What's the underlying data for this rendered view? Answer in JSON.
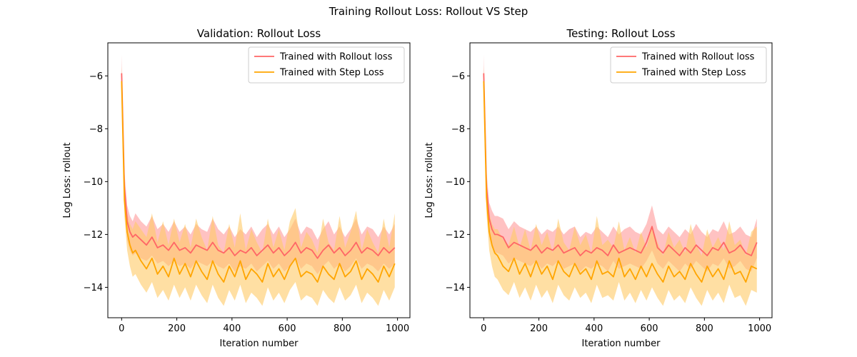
{
  "figure": {
    "suptitle": "Training Rollout Loss: Rollout VS Step"
  },
  "chart_data": [
    {
      "type": "line",
      "title": "Validation: Rollout Loss",
      "xlabel": "Iteration number",
      "ylabel": "Log Loss: rollout",
      "xlim": [
        -50,
        1045
      ],
      "ylim": [
        -15.15,
        -4.75
      ],
      "xticks": [
        0,
        200,
        400,
        600,
        800,
        1000
      ],
      "yticks": [
        -14,
        -12,
        -10,
        -8,
        -6
      ],
      "ytick_labels": [
        "−14",
        "−12",
        "−10",
        "−8",
        "−6"
      ],
      "grid": false,
      "legend": "top-right",
      "series": [
        {
          "name": "Trained with Rollout loss",
          "color": "#ff6666",
          "band_color": "#ff9999",
          "x": [
            0,
            10,
            20,
            30,
            40,
            50,
            70,
            90,
            110,
            130,
            150,
            170,
            190,
            210,
            230,
            250,
            270,
            290,
            310,
            330,
            350,
            370,
            390,
            410,
            430,
            450,
            470,
            490,
            510,
            530,
            550,
            570,
            590,
            610,
            630,
            650,
            670,
            690,
            710,
            730,
            750,
            770,
            790,
            810,
            830,
            850,
            870,
            890,
            910,
            930,
            950,
            970,
            990
          ],
          "values": [
            -5.9,
            -10.2,
            -11.5,
            -11.9,
            -12.1,
            -12.0,
            -12.2,
            -12.4,
            -12.1,
            -12.5,
            -12.4,
            -12.6,
            -12.3,
            -12.6,
            -12.5,
            -12.7,
            -12.4,
            -12.5,
            -12.6,
            -12.3,
            -12.6,
            -12.7,
            -12.5,
            -12.8,
            -12.6,
            -12.7,
            -12.5,
            -12.8,
            -12.6,
            -12.4,
            -12.7,
            -12.5,
            -12.8,
            -12.6,
            -12.3,
            -12.7,
            -12.5,
            -12.6,
            -12.9,
            -12.6,
            -12.4,
            -12.7,
            -12.5,
            -12.8,
            -12.6,
            -12.3,
            -12.7,
            -12.5,
            -12.6,
            -12.8,
            -12.5,
            -12.7,
            -12.5
          ],
          "band": {
            "lower": [
              -6.6,
              -10.8,
              -12.2,
              -12.6,
              -12.8,
              -12.7,
              -12.9,
              -13.0,
              -12.8,
              -13.1,
              -13.0,
              -13.2,
              -13.0,
              -13.2,
              -13.1,
              -13.3,
              -13.0,
              -13.1,
              -13.2,
              -13.0,
              -13.2,
              -13.3,
              -13.1,
              -13.4,
              -13.2,
              -13.3,
              -13.1,
              -13.4,
              -13.2,
              -13.0,
              -13.3,
              -13.1,
              -13.4,
              -13.2,
              -12.9,
              -13.3,
              -13.1,
              -13.2,
              -13.5,
              -13.2,
              -13.0,
              -13.3,
              -13.1,
              -13.4,
              -13.2,
              -12.9,
              -13.3,
              -13.1,
              -13.2,
              -13.4,
              -13.1,
              -13.3,
              -13.1
            ],
            "upper": [
              -5.2,
              -9.6,
              -10.9,
              -11.3,
              -11.5,
              -11.2,
              -11.5,
              -11.7,
              -11.3,
              -11.8,
              -11.6,
              -11.9,
              -11.5,
              -11.9,
              -11.7,
              -12.0,
              -11.6,
              -11.8,
              -11.9,
              -11.4,
              -11.8,
              -12.0,
              -11.7,
              -12.1,
              -11.8,
              -12.0,
              -11.7,
              -12.1,
              -11.8,
              -11.6,
              -12.0,
              -11.7,
              -12.1,
              -11.8,
              -11.4,
              -12.0,
              -11.7,
              -11.8,
              -12.2,
              -11.8,
              -11.5,
              -12.0,
              -11.7,
              -12.1,
              -11.8,
              -11.4,
              -12.0,
              -11.7,
              -11.8,
              -12.1,
              -11.7,
              -12.0,
              -11.6
            ]
          }
        },
        {
          "name": "Trained with Step Loss",
          "color": "#ffa500",
          "band_color": "#ffc966",
          "x": [
            0,
            10,
            20,
            30,
            40,
            50,
            70,
            90,
            110,
            130,
            150,
            170,
            190,
            210,
            230,
            250,
            270,
            290,
            310,
            330,
            350,
            370,
            390,
            410,
            430,
            450,
            470,
            490,
            510,
            530,
            550,
            570,
            590,
            610,
            630,
            650,
            670,
            690,
            710,
            730,
            750,
            770,
            790,
            810,
            830,
            850,
            870,
            890,
            910,
            930,
            950,
            970,
            990
          ],
          "values": [
            -6.2,
            -10.7,
            -11.9,
            -12.4,
            -12.7,
            -12.6,
            -13.0,
            -13.3,
            -12.9,
            -13.5,
            -13.2,
            -13.6,
            -12.9,
            -13.5,
            -13.1,
            -13.6,
            -13.0,
            -13.4,
            -13.7,
            -13.0,
            -13.5,
            -13.8,
            -13.2,
            -13.6,
            -13.0,
            -13.7,
            -13.3,
            -13.5,
            -13.8,
            -13.1,
            -13.6,
            -13.3,
            -13.7,
            -13.2,
            -12.9,
            -13.6,
            -13.4,
            -13.5,
            -13.8,
            -13.2,
            -13.5,
            -13.7,
            -13.1,
            -13.6,
            -13.4,
            -13.0,
            -13.7,
            -13.3,
            -13.5,
            -13.8,
            -13.2,
            -13.6,
            -13.1
          ],
          "band": {
            "lower": [
              -6.8,
              -11.3,
              -12.6,
              -13.2,
              -13.6,
              -13.5,
              -13.9,
              -14.2,
              -13.8,
              -14.4,
              -14.1,
              -14.5,
              -13.9,
              -14.4,
              -14.0,
              -14.5,
              -13.9,
              -14.3,
              -14.6,
              -13.9,
              -14.4,
              -14.7,
              -14.1,
              -14.5,
              -13.9,
              -14.6,
              -14.2,
              -14.4,
              -14.7,
              -14.0,
              -14.5,
              -14.2,
              -14.6,
              -14.1,
              -13.8,
              -14.5,
              -14.3,
              -14.4,
              -14.7,
              -14.1,
              -14.4,
              -14.6,
              -14.0,
              -14.5,
              -14.3,
              -13.9,
              -14.6,
              -14.2,
              -14.4,
              -14.7,
              -14.1,
              -14.5,
              -14.0
            ],
            "upper": [
              -5.6,
              -10.1,
              -11.2,
              -11.6,
              -11.8,
              -11.5,
              -11.8,
              -12.1,
              -11.2,
              -12.3,
              -11.5,
              -12.4,
              -11.4,
              -12.3,
              -11.6,
              -12.5,
              -11.4,
              -12.1,
              -12.6,
              -11.3,
              -12.4,
              -12.7,
              -11.6,
              -12.5,
              -11.2,
              -12.6,
              -11.8,
              -12.3,
              -12.7,
              -11.4,
              -12.5,
              -11.8,
              -12.6,
              -11.5,
              -11.0,
              -12.5,
              -11.9,
              -12.2,
              -12.7,
              -11.4,
              -12.3,
              -12.6,
              -11.3,
              -12.5,
              -11.9,
              -11.1,
              -12.6,
              -11.8,
              -12.3,
              -12.7,
              -11.4,
              -12.5,
              -11.2
            ]
          }
        }
      ]
    },
    {
      "type": "line",
      "title": "Testing: Rollout Loss",
      "xlabel": "Iteration number",
      "ylabel": "Log Loss: rollout",
      "xlim": [
        -50,
        1045
      ],
      "ylim": [
        -15.15,
        -4.75
      ],
      "xticks": [
        0,
        200,
        400,
        600,
        800,
        1000
      ],
      "yticks": [
        -14,
        -12,
        -10,
        -8,
        -6
      ],
      "ytick_labels": [
        "−14",
        "−12",
        "−10",
        "−8",
        "−6"
      ],
      "grid": false,
      "legend": "top-right",
      "series": [
        {
          "name": "Trained with Rollout loss",
          "color": "#ff6666",
          "band_color": "#ff9999",
          "x": [
            0,
            10,
            20,
            30,
            40,
            50,
            70,
            90,
            110,
            130,
            150,
            170,
            190,
            210,
            230,
            250,
            270,
            290,
            310,
            330,
            350,
            370,
            390,
            410,
            430,
            450,
            470,
            490,
            510,
            530,
            550,
            570,
            590,
            610,
            630,
            650,
            670,
            690,
            710,
            730,
            750,
            770,
            790,
            810,
            830,
            850,
            870,
            890,
            910,
            930,
            950,
            970,
            990
          ],
          "values": [
            -5.9,
            -10.2,
            -11.4,
            -11.8,
            -12.0,
            -12.0,
            -12.1,
            -12.5,
            -12.3,
            -12.4,
            -12.5,
            -12.6,
            -12.4,
            -12.7,
            -12.5,
            -12.6,
            -12.4,
            -12.7,
            -12.6,
            -12.5,
            -12.8,
            -12.6,
            -12.7,
            -12.5,
            -12.6,
            -12.8,
            -12.4,
            -12.7,
            -12.6,
            -12.5,
            -12.6,
            -12.7,
            -12.3,
            -11.7,
            -12.5,
            -12.7,
            -12.4,
            -12.6,
            -12.8,
            -12.5,
            -12.7,
            -12.4,
            -12.6,
            -12.8,
            -12.5,
            -12.6,
            -12.3,
            -12.7,
            -12.6,
            -12.4,
            -12.7,
            -12.8,
            -12.3
          ],
          "band": {
            "lower": [
              -6.6,
              -10.8,
              -12.1,
              -12.5,
              -12.7,
              -12.7,
              -12.8,
              -13.1,
              -12.9,
              -13.0,
              -13.1,
              -13.2,
              -13.0,
              -13.3,
              -13.1,
              -13.2,
              -13.0,
              -13.3,
              -13.2,
              -13.1,
              -13.4,
              -13.2,
              -13.3,
              -13.1,
              -13.2,
              -13.4,
              -13.0,
              -13.3,
              -13.2,
              -13.1,
              -13.2,
              -13.3,
              -13.0,
              -12.6,
              -13.1,
              -13.3,
              -13.0,
              -13.2,
              -13.4,
              -13.1,
              -13.3,
              -13.0,
              -13.2,
              -13.4,
              -13.1,
              -13.2,
              -12.9,
              -13.3,
              -13.2,
              -13.0,
              -13.3,
              -13.4,
              -12.9
            ],
            "upper": [
              -5.2,
              -9.6,
              -10.8,
              -11.1,
              -11.3,
              -11.3,
              -11.4,
              -11.8,
              -11.5,
              -11.7,
              -11.8,
              -11.9,
              -11.7,
              -12.0,
              -11.8,
              -11.9,
              -11.7,
              -12.0,
              -11.8,
              -11.7,
              -12.1,
              -11.9,
              -12.0,
              -11.7,
              -11.9,
              -12.1,
              -11.7,
              -12.0,
              -11.8,
              -11.7,
              -11.9,
              -12.0,
              -11.6,
              -10.9,
              -11.8,
              -12.0,
              -11.7,
              -11.9,
              -12.1,
              -11.8,
              -12.0,
              -11.6,
              -11.9,
              -12.1,
              -11.8,
              -11.9,
              -11.5,
              -12.0,
              -11.9,
              -11.7,
              -12.0,
              -12.1,
              -11.4
            ]
          }
        },
        {
          "name": "Trained with Step Loss",
          "color": "#ffa500",
          "band_color": "#ffc966",
          "x": [
            0,
            10,
            20,
            30,
            40,
            50,
            70,
            90,
            110,
            130,
            150,
            170,
            190,
            210,
            230,
            250,
            270,
            290,
            310,
            330,
            350,
            370,
            390,
            410,
            430,
            450,
            470,
            490,
            510,
            530,
            550,
            570,
            590,
            610,
            630,
            650,
            670,
            690,
            710,
            730,
            750,
            770,
            790,
            810,
            830,
            850,
            870,
            890,
            910,
            930,
            950,
            970,
            990
          ],
          "values": [
            -6.2,
            -10.6,
            -11.9,
            -12.4,
            -12.7,
            -12.8,
            -13.2,
            -13.4,
            -12.9,
            -13.5,
            -13.1,
            -13.6,
            -13.0,
            -13.5,
            -13.2,
            -13.7,
            -13.0,
            -13.4,
            -13.6,
            -13.1,
            -13.5,
            -13.3,
            -13.7,
            -13.0,
            -13.5,
            -13.4,
            -13.6,
            -12.9,
            -13.6,
            -13.3,
            -13.7,
            -13.2,
            -13.6,
            -13.1,
            -13.5,
            -13.8,
            -13.2,
            -13.6,
            -13.4,
            -13.7,
            -13.1,
            -13.5,
            -13.8,
            -13.2,
            -13.6,
            -13.3,
            -13.7,
            -13.0,
            -13.5,
            -13.4,
            -13.8,
            -13.2,
            -13.3
          ],
          "band": {
            "lower": [
              -6.8,
              -11.2,
              -12.6,
              -13.2,
              -13.6,
              -13.7,
              -14.1,
              -14.3,
              -13.8,
              -14.4,
              -14.0,
              -14.5,
              -13.9,
              -14.4,
              -14.1,
              -14.6,
              -13.9,
              -14.3,
              -14.5,
              -14.0,
              -14.4,
              -14.2,
              -14.6,
              -13.9,
              -14.4,
              -14.3,
              -14.5,
              -13.8,
              -14.5,
              -14.2,
              -14.6,
              -14.1,
              -14.5,
              -14.0,
              -14.4,
              -14.7,
              -14.1,
              -14.5,
              -14.3,
              -14.6,
              -14.0,
              -14.4,
              -14.7,
              -14.1,
              -14.5,
              -14.2,
              -14.6,
              -13.9,
              -14.4,
              -14.3,
              -14.7,
              -14.1,
              -14.2
            ],
            "upper": [
              -5.6,
              -10.0,
              -11.2,
              -11.6,
              -11.8,
              -11.8,
              -12.2,
              -12.4,
              -11.7,
              -12.5,
              -11.8,
              -12.6,
              -11.6,
              -12.4,
              -11.9,
              -12.7,
              -11.4,
              -12.3,
              -12.6,
              -11.7,
              -12.4,
              -12.0,
              -12.7,
              -11.3,
              -12.4,
              -12.2,
              -12.5,
              -11.5,
              -12.6,
              -12.1,
              -12.7,
              -11.9,
              -12.5,
              -11.7,
              -12.3,
              -12.8,
              -11.9,
              -12.5,
              -12.2,
              -12.7,
              -11.6,
              -12.4,
              -12.8,
              -11.8,
              -12.5,
              -12.1,
              -12.6,
              -11.5,
              -12.4,
              -12.2,
              -12.8,
              -11.9,
              -11.7
            ]
          }
        }
      ]
    }
  ]
}
